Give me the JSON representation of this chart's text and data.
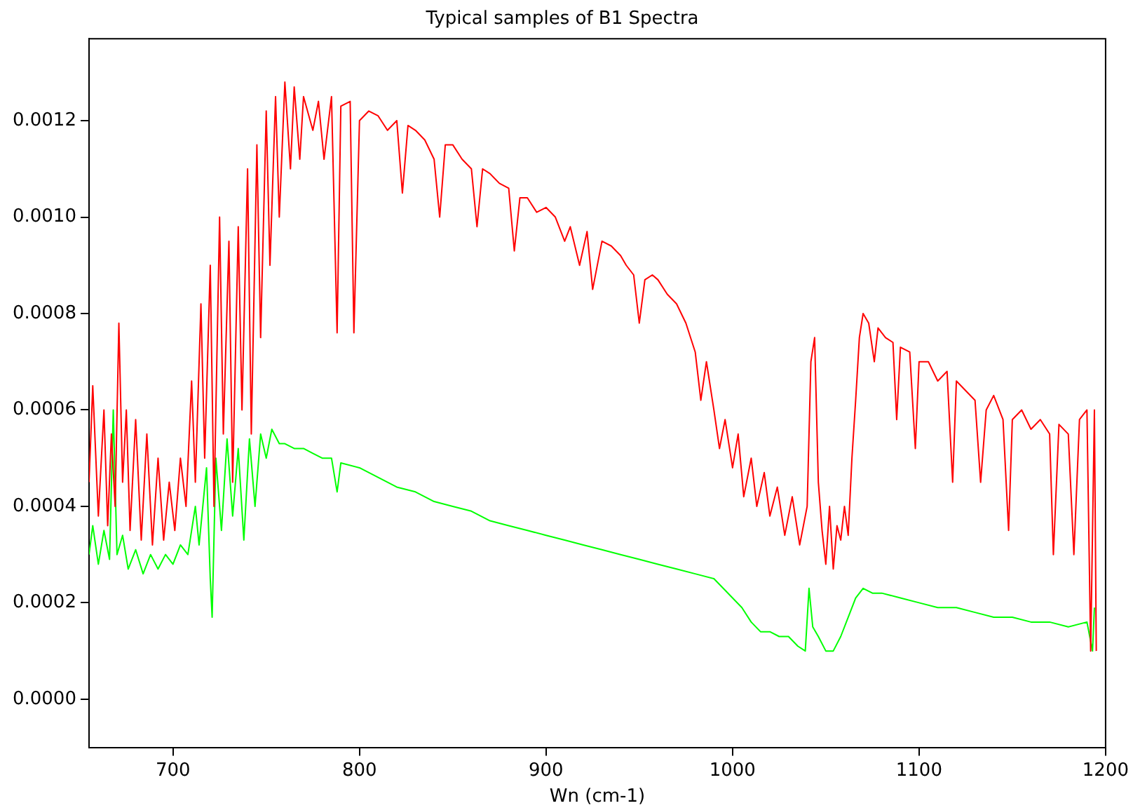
{
  "chart_data": {
    "type": "line",
    "title": "Typical samples of B1 Spectra",
    "xlabel": "Wn (cm-1)",
    "xlim": [
      655,
      1200
    ],
    "xticks": [
      700,
      800,
      900,
      1000,
      1100,
      1200
    ],
    "ylim": [
      -0.0001,
      0.00137
    ],
    "yticks": [
      {
        "value": 0,
        "label": "0.0000"
      },
      {
        "value": 0.0002,
        "label": "0.0002"
      },
      {
        "value": 0.0004,
        "label": "0.0004"
      },
      {
        "value": 0.0006,
        "label": "0.0006"
      },
      {
        "value": 0.0008,
        "label": "0.0008"
      },
      {
        "value": 0.001,
        "label": "0.0010"
      },
      {
        "value": 0.0012,
        "label": "0.0012"
      }
    ],
    "grid": false,
    "legend": false,
    "marker": "none",
    "line_style": "solid",
    "series": [
      {
        "color": "#ff0000",
        "x": [
          655,
          657,
          660,
          663,
          665,
          667,
          669,
          671,
          673,
          675,
          677,
          680,
          683,
          686,
          689,
          692,
          695,
          698,
          701,
          704,
          707,
          710,
          712,
          715,
          717,
          720,
          722,
          725,
          727,
          730,
          732,
          735,
          737,
          740,
          742,
          745,
          747,
          750,
          752,
          755,
          757,
          760,
          763,
          765,
          768,
          770,
          775,
          778,
          781,
          785,
          788,
          790,
          795,
          797,
          800,
          805,
          810,
          815,
          820,
          823,
          826,
          830,
          835,
          840,
          843,
          846,
          850,
          855,
          860,
          863,
          866,
          870,
          875,
          880,
          883,
          886,
          890,
          895,
          900,
          905,
          910,
          913,
          918,
          922,
          925,
          930,
          935,
          940,
          943,
          947,
          950,
          953,
          957,
          960,
          965,
          970,
          975,
          980,
          983,
          986,
          990,
          993,
          996,
          1000,
          1003,
          1006,
          1010,
          1013,
          1017,
          1020,
          1024,
          1028,
          1032,
          1036,
          1040,
          1042,
          1044,
          1046,
          1048,
          1050,
          1052,
          1054,
          1056,
          1058,
          1060,
          1062,
          1064,
          1066,
          1068,
          1070,
          1073,
          1076,
          1078,
          1082,
          1086,
          1088,
          1090,
          1095,
          1098,
          1100,
          1105,
          1110,
          1115,
          1118,
          1120,
          1125,
          1130,
          1133,
          1136,
          1140,
          1145,
          1148,
          1150,
          1155,
          1160,
          1165,
          1170,
          1172,
          1175,
          1180,
          1183,
          1186,
          1190,
          1192,
          1194,
          1195
        ],
        "values": [
          0.00045,
          0.00065,
          0.00038,
          0.0006,
          0.00036,
          0.00055,
          0.0004,
          0.00078,
          0.00045,
          0.0006,
          0.00035,
          0.00058,
          0.00033,
          0.00055,
          0.00032,
          0.0005,
          0.00033,
          0.00045,
          0.00035,
          0.0005,
          0.0004,
          0.00066,
          0.00045,
          0.00082,
          0.0005,
          0.0009,
          0.0004,
          0.001,
          0.00055,
          0.00095,
          0.00045,
          0.00098,
          0.0006,
          0.0011,
          0.00055,
          0.00115,
          0.00075,
          0.00122,
          0.0009,
          0.00125,
          0.001,
          0.00128,
          0.0011,
          0.00127,
          0.00112,
          0.00125,
          0.00118,
          0.00124,
          0.00112,
          0.00125,
          0.00076,
          0.00123,
          0.00124,
          0.00076,
          0.0012,
          0.00122,
          0.00121,
          0.00118,
          0.0012,
          0.00105,
          0.00119,
          0.00118,
          0.00116,
          0.00112,
          0.001,
          0.00115,
          0.00115,
          0.00112,
          0.0011,
          0.00098,
          0.0011,
          0.00109,
          0.00107,
          0.00106,
          0.00093,
          0.00104,
          0.00104,
          0.00101,
          0.00102,
          0.001,
          0.00095,
          0.00098,
          0.0009,
          0.00097,
          0.00085,
          0.00095,
          0.00094,
          0.00092,
          0.0009,
          0.00088,
          0.00078,
          0.00087,
          0.00088,
          0.00087,
          0.00084,
          0.00082,
          0.00078,
          0.00072,
          0.00062,
          0.0007,
          0.0006,
          0.00052,
          0.00058,
          0.00048,
          0.00055,
          0.00042,
          0.0005,
          0.0004,
          0.00047,
          0.00038,
          0.00044,
          0.00034,
          0.00042,
          0.00032,
          0.0004,
          0.0007,
          0.00075,
          0.00045,
          0.00035,
          0.00028,
          0.0004,
          0.00027,
          0.00036,
          0.00033,
          0.0004,
          0.00034,
          0.0005,
          0.00062,
          0.00075,
          0.0008,
          0.00078,
          0.0007,
          0.00077,
          0.00075,
          0.00074,
          0.00058,
          0.00073,
          0.00072,
          0.00052,
          0.0007,
          0.0007,
          0.00066,
          0.00068,
          0.00045,
          0.00066,
          0.00064,
          0.00062,
          0.00045,
          0.0006,
          0.00063,
          0.00058,
          0.00035,
          0.00058,
          0.0006,
          0.00056,
          0.00058,
          0.00055,
          0.0003,
          0.00057,
          0.00055,
          0.0003,
          0.00058,
          0.0006,
          0.0001,
          0.0006,
          0.0001
        ]
      },
      {
        "color": "#00ff00",
        "x": [
          655,
          657,
          660,
          663,
          666,
          668,
          670,
          673,
          676,
          680,
          684,
          688,
          692,
          696,
          700,
          704,
          708,
          712,
          714,
          718,
          720,
          721,
          723,
          726,
          729,
          732,
          735,
          738,
          741,
          744,
          747,
          750,
          753,
          757,
          760,
          765,
          770,
          775,
          780,
          785,
          788,
          790,
          800,
          810,
          820,
          830,
          840,
          850,
          860,
          870,
          880,
          890,
          900,
          910,
          920,
          930,
          940,
          950,
          960,
          970,
          980,
          990,
          995,
          1000,
          1005,
          1010,
          1015,
          1020,
          1025,
          1030,
          1035,
          1039,
          1041,
          1043,
          1046,
          1050,
          1054,
          1058,
          1062,
          1066,
          1070,
          1075,
          1080,
          1090,
          1100,
          1110,
          1120,
          1130,
          1140,
          1150,
          1160,
          1170,
          1180,
          1190,
          1193,
          1194
        ],
        "values": [
          0.0003,
          0.00036,
          0.00028,
          0.00035,
          0.00029,
          0.0006,
          0.0003,
          0.00034,
          0.00027,
          0.00031,
          0.00026,
          0.0003,
          0.00027,
          0.0003,
          0.00028,
          0.00032,
          0.0003,
          0.0004,
          0.00032,
          0.00048,
          0.00025,
          0.00017,
          0.0005,
          0.00035,
          0.00054,
          0.00038,
          0.00052,
          0.00033,
          0.00054,
          0.0004,
          0.00055,
          0.0005,
          0.00056,
          0.00053,
          0.00053,
          0.00052,
          0.00052,
          0.00051,
          0.0005,
          0.0005,
          0.00043,
          0.00049,
          0.00048,
          0.00046,
          0.00044,
          0.00043,
          0.00041,
          0.0004,
          0.00039,
          0.00037,
          0.00036,
          0.00035,
          0.00034,
          0.00033,
          0.00032,
          0.00031,
          0.0003,
          0.00029,
          0.00028,
          0.00027,
          0.00026,
          0.00025,
          0.00023,
          0.00021,
          0.00019,
          0.00016,
          0.00014,
          0.00014,
          0.00013,
          0.00013,
          0.00011,
          0.0001,
          0.00023,
          0.00015,
          0.00013,
          0.0001,
          0.0001,
          0.00013,
          0.00017,
          0.00021,
          0.00023,
          0.00022,
          0.00022,
          0.00021,
          0.0002,
          0.00019,
          0.00019,
          0.00018,
          0.00017,
          0.00017,
          0.00016,
          0.00016,
          0.00015,
          0.00016,
          0.0001,
          0.00019
        ]
      }
    ]
  }
}
